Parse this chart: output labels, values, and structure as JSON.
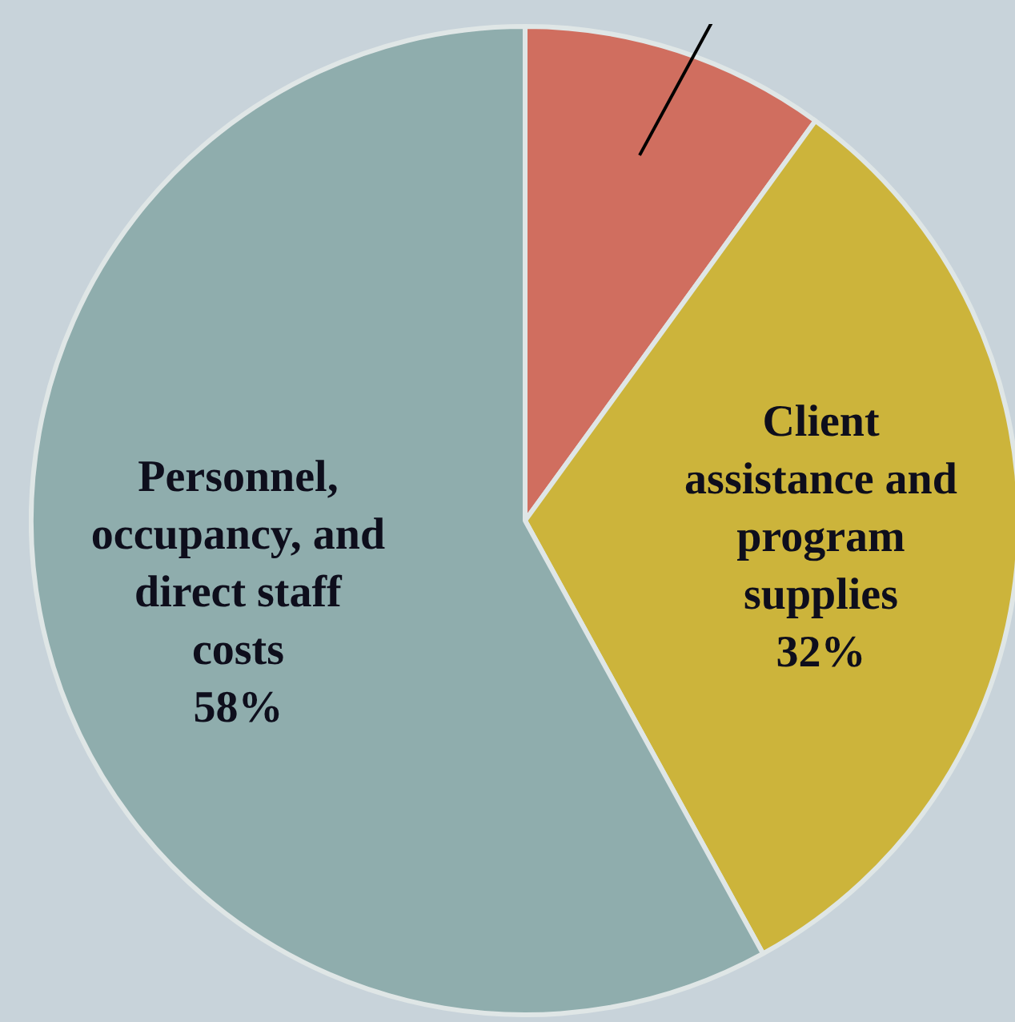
{
  "chart_data": {
    "type": "pie",
    "categories": [
      null,
      "Client assistance and program supplies",
      "Personnel, occupancy, and direct staff costs"
    ],
    "values": [
      10,
      32,
      58
    ],
    "colors": [
      "#d06e5f",
      "#ccb43b",
      "#8fadad"
    ],
    "value_labels": [
      null,
      "32%",
      "58%"
    ],
    "legend": false
  }
}
